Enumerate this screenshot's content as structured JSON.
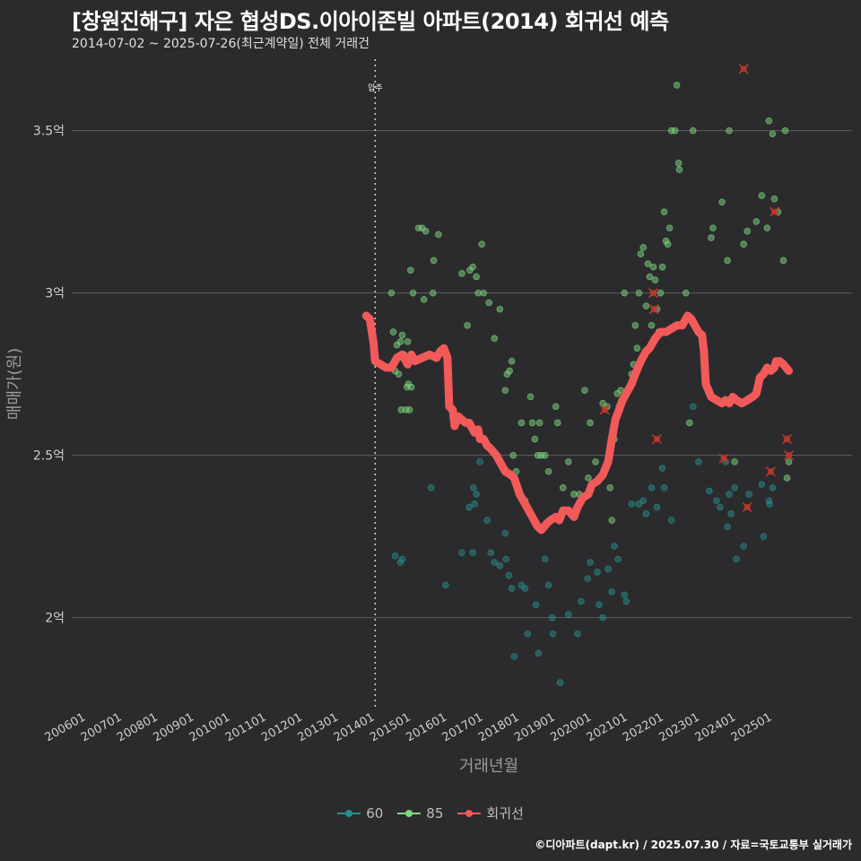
{
  "header": {
    "title": "[창원진해구] 자은 협성DS.이아이존빌 아파트(2014) 회귀선 예측",
    "subtitle": "2014-07-02 ~ 2025-07-26(최근계약일) 전체 거래건"
  },
  "caption": "©디아파트(dapt.kr) / 2025.07.30 / 자료=국토교통부 실거래가",
  "colors": {
    "background": "#2b2b2d",
    "grid": "#5e5e5e",
    "series_60": "#2a8c8c",
    "series_85": "#7ed67e",
    "regression": "#f25a5a",
    "outlier": "#c0392b"
  },
  "chart_data": {
    "type": "scatter",
    "title": "[창원진해구] 자은 협성DS.이아이존빌 아파트(2014) 회귀선 예측",
    "xlabel": "거래년월",
    "ylabel": "매매가(원)",
    "xlim": [
      2005.6,
      2027.2
    ],
    "ylim": [
      1.72,
      3.72
    ],
    "x_ticks": [
      "200601",
      "200701",
      "200801",
      "200901",
      "201001",
      "201101",
      "201201",
      "201301",
      "201401",
      "201501",
      "201601",
      "201701",
      "201801",
      "201901",
      "202001",
      "202101",
      "202201",
      "202301",
      "202401",
      "202501"
    ],
    "y_ticks": [
      {
        "value": 2.0,
        "label": "2억"
      },
      {
        "value": 2.5,
        "label": "2.5억"
      },
      {
        "value": 3.0,
        "label": "3억"
      },
      {
        "value": 3.5,
        "label": "3.5억"
      }
    ],
    "reference_line": {
      "x": 2014.0,
      "label": "입주"
    },
    "legend": [
      {
        "key": "60",
        "label": "60",
        "color": "#2a8c8c"
      },
      {
        "key": "85",
        "label": "85",
        "color": "#7ed67e"
      },
      {
        "key": "reg",
        "label": "회귀선",
        "color": "#f25a5a"
      }
    ],
    "series": [
      {
        "name": "60",
        "points": [
          [
            2014.55,
            2.19
          ],
          [
            2014.7,
            2.17
          ],
          [
            2014.75,
            2.18
          ],
          [
            2015.55,
            2.4
          ],
          [
            2015.95,
            2.1
          ],
          [
            2016.4,
            2.2
          ],
          [
            2016.7,
            2.2
          ],
          [
            2016.6,
            2.34
          ],
          [
            2016.75,
            2.35
          ],
          [
            2016.72,
            2.4
          ],
          [
            2016.8,
            2.38
          ],
          [
            2016.9,
            2.48
          ],
          [
            2017.1,
            2.3
          ],
          [
            2017.2,
            2.2
          ],
          [
            2017.3,
            2.17
          ],
          [
            2017.45,
            2.16
          ],
          [
            2017.6,
            2.26
          ],
          [
            2017.62,
            2.18
          ],
          [
            2017.7,
            2.13
          ],
          [
            2017.78,
            2.09
          ],
          [
            2017.85,
            1.88
          ],
          [
            2018.05,
            2.1
          ],
          [
            2018.15,
            2.09
          ],
          [
            2018.22,
            1.95
          ],
          [
            2018.45,
            2.04
          ],
          [
            2018.52,
            1.89
          ],
          [
            2018.7,
            2.18
          ],
          [
            2018.8,
            2.1
          ],
          [
            2018.9,
            2.0
          ],
          [
            2018.92,
            1.95
          ],
          [
            2019.12,
            1.8
          ],
          [
            2019.35,
            2.01
          ],
          [
            2019.6,
            1.95
          ],
          [
            2019.7,
            2.05
          ],
          [
            2019.88,
            2.12
          ],
          [
            2019.95,
            2.17
          ],
          [
            2020.15,
            2.14
          ],
          [
            2020.2,
            2.04
          ],
          [
            2020.3,
            2.0
          ],
          [
            2020.45,
            2.15
          ],
          [
            2020.55,
            2.08
          ],
          [
            2020.62,
            2.22
          ],
          [
            2020.72,
            2.18
          ],
          [
            2020.9,
            2.07
          ],
          [
            2020.95,
            2.05
          ],
          [
            2021.1,
            2.35
          ],
          [
            2021.3,
            2.35
          ],
          [
            2021.42,
            2.36
          ],
          [
            2021.5,
            2.32
          ],
          [
            2021.65,
            2.4
          ],
          [
            2021.8,
            2.34
          ],
          [
            2021.95,
            2.46
          ],
          [
            2022.0,
            2.4
          ],
          [
            2022.2,
            2.3
          ],
          [
            2022.8,
            2.65
          ],
          [
            2022.95,
            2.48
          ],
          [
            2023.25,
            2.39
          ],
          [
            2023.45,
            2.36
          ],
          [
            2023.55,
            2.34
          ],
          [
            2023.7,
            2.48
          ],
          [
            2023.75,
            2.28
          ],
          [
            2023.8,
            2.38
          ],
          [
            2023.85,
            2.32
          ],
          [
            2023.95,
            2.4
          ],
          [
            2024.0,
            2.18
          ],
          [
            2024.2,
            2.22
          ],
          [
            2024.35,
            2.38
          ],
          [
            2024.7,
            2.41
          ],
          [
            2024.75,
            2.25
          ],
          [
            2024.9,
            2.36
          ],
          [
            2024.92,
            2.35
          ],
          [
            2025.0,
            2.4
          ]
        ]
      },
      {
        "name": "85",
        "points": [
          [
            2014.45,
            3.0
          ],
          [
            2014.5,
            2.88
          ],
          [
            2014.55,
            2.76
          ],
          [
            2014.6,
            2.84
          ],
          [
            2014.65,
            2.75
          ],
          [
            2014.7,
            2.85
          ],
          [
            2014.72,
            2.64
          ],
          [
            2014.75,
            2.87
          ],
          [
            2014.8,
            2.81
          ],
          [
            2014.85,
            2.64
          ],
          [
            2014.88,
            2.71
          ],
          [
            2014.9,
            2.85
          ],
          [
            2014.92,
            2.72
          ],
          [
            2014.95,
            2.64
          ],
          [
            2014.98,
            3.07
          ],
          [
            2015.0,
            2.71
          ],
          [
            2015.05,
            3.0
          ],
          [
            2015.2,
            3.2
          ],
          [
            2015.3,
            3.2
          ],
          [
            2015.35,
            2.98
          ],
          [
            2015.4,
            3.19
          ],
          [
            2015.5,
            2.81
          ],
          [
            2015.6,
            3.0
          ],
          [
            2015.62,
            3.1
          ],
          [
            2015.75,
            3.18
          ],
          [
            2016.4,
            3.06
          ],
          [
            2016.55,
            2.9
          ],
          [
            2016.62,
            3.07
          ],
          [
            2016.7,
            3.08
          ],
          [
            2016.8,
            3.05
          ],
          [
            2016.85,
            3.0
          ],
          [
            2016.95,
            3.15
          ],
          [
            2017.0,
            3.0
          ],
          [
            2017.15,
            2.97
          ],
          [
            2017.3,
            2.86
          ],
          [
            2017.45,
            2.95
          ],
          [
            2017.6,
            2.7
          ],
          [
            2017.65,
            2.75
          ],
          [
            2017.72,
            2.76
          ],
          [
            2017.78,
            2.79
          ],
          [
            2017.82,
            2.5
          ],
          [
            2017.9,
            2.45
          ],
          [
            2018.05,
            2.6
          ],
          [
            2018.15,
            2.36
          ],
          [
            2018.3,
            2.68
          ],
          [
            2018.35,
            2.6
          ],
          [
            2018.42,
            2.55
          ],
          [
            2018.5,
            2.5
          ],
          [
            2018.55,
            2.6
          ],
          [
            2018.6,
            2.5
          ],
          [
            2018.7,
            2.5
          ],
          [
            2018.8,
            2.45
          ],
          [
            2019.0,
            2.65
          ],
          [
            2019.05,
            2.6
          ],
          [
            2019.2,
            2.4
          ],
          [
            2019.35,
            2.48
          ],
          [
            2019.5,
            2.38
          ],
          [
            2019.65,
            2.38
          ],
          [
            2019.8,
            2.7
          ],
          [
            2019.9,
            2.43
          ],
          [
            2019.95,
            2.6
          ],
          [
            2020.1,
            2.48
          ],
          [
            2020.3,
            2.66
          ],
          [
            2020.42,
            2.65
          ],
          [
            2020.5,
            2.4
          ],
          [
            2020.55,
            2.3
          ],
          [
            2020.62,
            2.55
          ],
          [
            2020.7,
            2.69
          ],
          [
            2020.75,
            2.65
          ],
          [
            2020.8,
            2.7
          ],
          [
            2020.9,
            3.0
          ],
          [
            2021.0,
            2.7
          ],
          [
            2021.1,
            2.75
          ],
          [
            2021.15,
            2.78
          ],
          [
            2021.2,
            2.9
          ],
          [
            2021.25,
            2.83
          ],
          [
            2021.3,
            3.0
          ],
          [
            2021.35,
            3.12
          ],
          [
            2021.42,
            3.14
          ],
          [
            2021.5,
            2.96
          ],
          [
            2021.55,
            3.09
          ],
          [
            2021.6,
            3.05
          ],
          [
            2021.65,
            2.9
          ],
          [
            2021.7,
            3.08
          ],
          [
            2021.75,
            3.04
          ],
          [
            2021.8,
            2.95
          ],
          [
            2021.85,
            2.88
          ],
          [
            2021.9,
            3.0
          ],
          [
            2021.95,
            3.08
          ],
          [
            2022.0,
            3.25
          ],
          [
            2022.05,
            3.16
          ],
          [
            2022.1,
            3.15
          ],
          [
            2022.15,
            3.2
          ],
          [
            2022.2,
            3.5
          ],
          [
            2022.3,
            3.5
          ],
          [
            2022.35,
            3.64
          ],
          [
            2022.4,
            3.4
          ],
          [
            2022.42,
            3.38
          ],
          [
            2022.6,
            3.0
          ],
          [
            2022.7,
            2.6
          ],
          [
            2022.8,
            3.5
          ],
          [
            2023.3,
            3.17
          ],
          [
            2023.35,
            3.2
          ],
          [
            2023.6,
            3.28
          ],
          [
            2023.75,
            3.1
          ],
          [
            2023.8,
            3.5
          ],
          [
            2023.95,
            2.48
          ],
          [
            2024.2,
            3.15
          ],
          [
            2024.3,
            3.19
          ],
          [
            2024.55,
            3.22
          ],
          [
            2024.7,
            3.3
          ],
          [
            2024.85,
            3.2
          ],
          [
            2024.9,
            3.53
          ],
          [
            2025.0,
            3.49
          ],
          [
            2025.05,
            3.29
          ],
          [
            2025.15,
            3.25
          ],
          [
            2025.3,
            3.1
          ],
          [
            2025.35,
            3.5
          ],
          [
            2025.4,
            2.43
          ],
          [
            2025.45,
            2.48
          ]
        ]
      }
    ],
    "regression_line": [
      [
        2013.75,
        2.93
      ],
      [
        2013.85,
        2.92
      ],
      [
        2013.95,
        2.85
      ],
      [
        2014.0,
        2.79
      ],
      [
        2014.15,
        2.78
      ],
      [
        2014.3,
        2.77
      ],
      [
        2014.45,
        2.77
      ],
      [
        2014.6,
        2.8
      ],
      [
        2014.75,
        2.81
      ],
      [
        2014.9,
        2.78
      ],
      [
        2015.0,
        2.81
      ],
      [
        2015.1,
        2.79
      ],
      [
        2015.3,
        2.8
      ],
      [
        2015.5,
        2.81
      ],
      [
        2015.7,
        2.8
      ],
      [
        2015.8,
        2.82
      ],
      [
        2015.9,
        2.83
      ],
      [
        2016.0,
        2.8
      ],
      [
        2016.05,
        2.65
      ],
      [
        2016.15,
        2.64
      ],
      [
        2016.2,
        2.59
      ],
      [
        2016.3,
        2.62
      ],
      [
        2016.4,
        2.61
      ],
      [
        2016.5,
        2.6
      ],
      [
        2016.6,
        2.6
      ],
      [
        2016.75,
        2.57
      ],
      [
        2016.85,
        2.58
      ],
      [
        2016.9,
        2.55
      ],
      [
        2017.0,
        2.55
      ],
      [
        2017.1,
        2.53
      ],
      [
        2017.2,
        2.52
      ],
      [
        2017.35,
        2.5
      ],
      [
        2017.5,
        2.47
      ],
      [
        2017.6,
        2.45
      ],
      [
        2017.75,
        2.44
      ],
      [
        2017.85,
        2.43
      ],
      [
        2018.0,
        2.38
      ],
      [
        2018.2,
        2.34
      ],
      [
        2018.35,
        2.31
      ],
      [
        2018.5,
        2.28
      ],
      [
        2018.6,
        2.27
      ],
      [
        2018.75,
        2.29
      ],
      [
        2018.85,
        2.3
      ],
      [
        2019.0,
        2.31
      ],
      [
        2019.1,
        2.3
      ],
      [
        2019.2,
        2.33
      ],
      [
        2019.35,
        2.33
      ],
      [
        2019.5,
        2.31
      ],
      [
        2019.6,
        2.34
      ],
      [
        2019.75,
        2.37
      ],
      [
        2019.9,
        2.38
      ],
      [
        2020.0,
        2.41
      ],
      [
        2020.15,
        2.42
      ],
      [
        2020.3,
        2.44
      ],
      [
        2020.45,
        2.48
      ],
      [
        2020.55,
        2.55
      ],
      [
        2020.65,
        2.61
      ],
      [
        2020.75,
        2.64
      ],
      [
        2020.85,
        2.67
      ],
      [
        2021.0,
        2.7
      ],
      [
        2021.1,
        2.72
      ],
      [
        2021.2,
        2.75
      ],
      [
        2021.35,
        2.79
      ],
      [
        2021.5,
        2.82
      ],
      [
        2021.6,
        2.83
      ],
      [
        2021.75,
        2.86
      ],
      [
        2021.9,
        2.88
      ],
      [
        2022.05,
        2.88
      ],
      [
        2022.2,
        2.89
      ],
      [
        2022.35,
        2.9
      ],
      [
        2022.5,
        2.9
      ],
      [
        2022.6,
        2.92
      ],
      [
        2022.65,
        2.93
      ],
      [
        2022.75,
        2.92
      ],
      [
        2022.85,
        2.9
      ],
      [
        2022.95,
        2.88
      ],
      [
        2023.05,
        2.87
      ],
      [
        2023.1,
        2.82
      ],
      [
        2023.15,
        2.72
      ],
      [
        2023.3,
        2.68
      ],
      [
        2023.45,
        2.67
      ],
      [
        2023.6,
        2.66
      ],
      [
        2023.7,
        2.67
      ],
      [
        2023.8,
        2.66
      ],
      [
        2023.9,
        2.68
      ],
      [
        2024.0,
        2.67
      ],
      [
        2024.15,
        2.66
      ],
      [
        2024.3,
        2.67
      ],
      [
        2024.45,
        2.68
      ],
      [
        2024.55,
        2.69
      ],
      [
        2024.65,
        2.74
      ],
      [
        2024.75,
        2.75
      ],
      [
        2024.85,
        2.77
      ],
      [
        2024.95,
        2.76
      ],
      [
        2025.05,
        2.77
      ],
      [
        2025.1,
        2.79
      ],
      [
        2025.2,
        2.79
      ],
      [
        2025.3,
        2.78
      ],
      [
        2025.45,
        2.76
      ]
    ],
    "outliers": [
      [
        2020.35,
        2.64
      ],
      [
        2021.7,
        3.0
      ],
      [
        2021.72,
        2.95
      ],
      [
        2021.8,
        2.55
      ],
      [
        2024.2,
        3.69
      ],
      [
        2023.65,
        2.49
      ],
      [
        2024.3,
        2.34
      ],
      [
        2024.95,
        2.45
      ],
      [
        2025.05,
        3.25
      ],
      [
        2025.4,
        2.55
      ],
      [
        2025.45,
        2.5
      ]
    ]
  }
}
